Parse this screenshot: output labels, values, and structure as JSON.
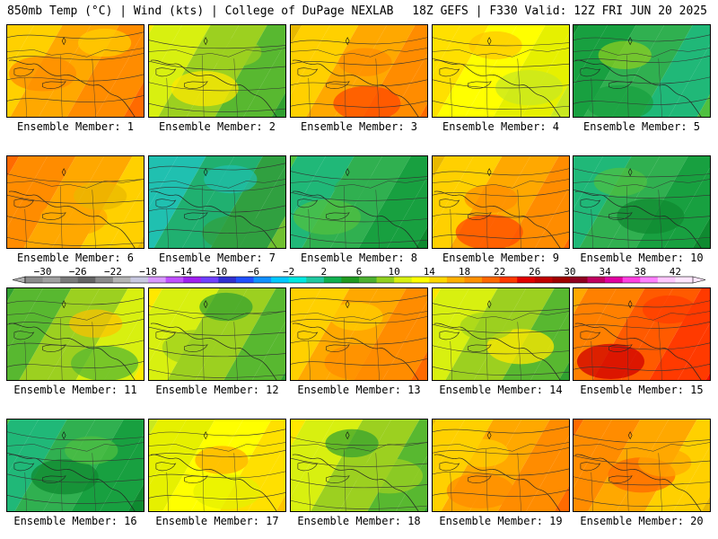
{
  "header": {
    "title": "850mb Temp (°C) | Wind (kts) | College of DuPage NEXLAB",
    "run": "18Z GEFS | F330 Valid: 12Z FRI JUN 20 2025"
  },
  "panels": [
    {
      "label": "Ensemble Member: 1",
      "mean_temp_c": 17,
      "palette": "warm"
    },
    {
      "label": "Ensemble Member: 2",
      "mean_temp_c": 12,
      "palette": "mixed"
    },
    {
      "label": "Ensemble Member: 3",
      "mean_temp_c": 14,
      "palette": "warm"
    },
    {
      "label": "Ensemble Member: 4",
      "mean_temp_c": 13,
      "palette": "yellow"
    },
    {
      "label": "Ensemble Member: 5",
      "mean_temp_c": 7,
      "palette": "green"
    },
    {
      "label": "Ensemble Member: 6",
      "mean_temp_c": 15,
      "palette": "warm"
    },
    {
      "label": "Ensemble Member: 7",
      "mean_temp_c": 9,
      "palette": "cool"
    },
    {
      "label": "Ensemble Member: 8",
      "mean_temp_c": 8,
      "palette": "green"
    },
    {
      "label": "Ensemble Member: 9",
      "mean_temp_c": 14,
      "palette": "warm"
    },
    {
      "label": "Ensemble Member: 10",
      "mean_temp_c": 9,
      "palette": "green"
    },
    {
      "label": "Ensemble Member: 11",
      "mean_temp_c": 11,
      "palette": "mixed"
    },
    {
      "label": "Ensemble Member: 12",
      "mean_temp_c": 11,
      "palette": "mixed"
    },
    {
      "label": "Ensemble Member: 13",
      "mean_temp_c": 15,
      "palette": "warm"
    },
    {
      "label": "Ensemble Member: 14",
      "mean_temp_c": 11,
      "palette": "mixed"
    },
    {
      "label": "Ensemble Member: 15",
      "mean_temp_c": 20,
      "palette": "hot"
    },
    {
      "label": "Ensemble Member: 16",
      "mean_temp_c": 9,
      "palette": "green"
    },
    {
      "label": "Ensemble Member: 17",
      "mean_temp_c": 12,
      "palette": "yellow"
    },
    {
      "label": "Ensemble Member: 18",
      "mean_temp_c": 12,
      "palette": "mixed"
    },
    {
      "label": "Ensemble Member: 19",
      "mean_temp_c": 16,
      "palette": "warm"
    },
    {
      "label": "Ensemble Member: 20",
      "mean_temp_c": 16,
      "palette": "warm"
    }
  ],
  "colorbar": {
    "unit": "°C",
    "min": -32,
    "max": 44,
    "step": 2,
    "tick_labels": [
      "-30",
      "-26",
      "-22",
      "-18",
      "-14",
      "-10",
      "-6",
      "-2",
      "2",
      "6",
      "10",
      "14",
      "18",
      "22",
      "26",
      "30",
      "34",
      "38",
      "42"
    ],
    "colors": [
      "#8c8c8c",
      "#a0a0a0",
      "#7a7a7a",
      "#646464",
      "#8a8a8a",
      "#b4b4b4",
      "#c8c8e0",
      "#d898ff",
      "#c050ff",
      "#a020f0",
      "#7040ff",
      "#3030d0",
      "#2050ff",
      "#1090ff",
      "#00c8ff",
      "#00e8e0",
      "#20c8a0",
      "#10b050",
      "#209a20",
      "#4cb030",
      "#90d020",
      "#d8f010",
      "#ffff00",
      "#ffd800",
      "#ffb000",
      "#ff9000",
      "#ff6800",
      "#ff3800",
      "#e00000",
      "#c00000",
      "#a00000",
      "#900020",
      "#c00060",
      "#e000a0",
      "#ff40e0",
      "#ff80ff",
      "#ffc8ff",
      "#ffe6ff"
    ]
  }
}
